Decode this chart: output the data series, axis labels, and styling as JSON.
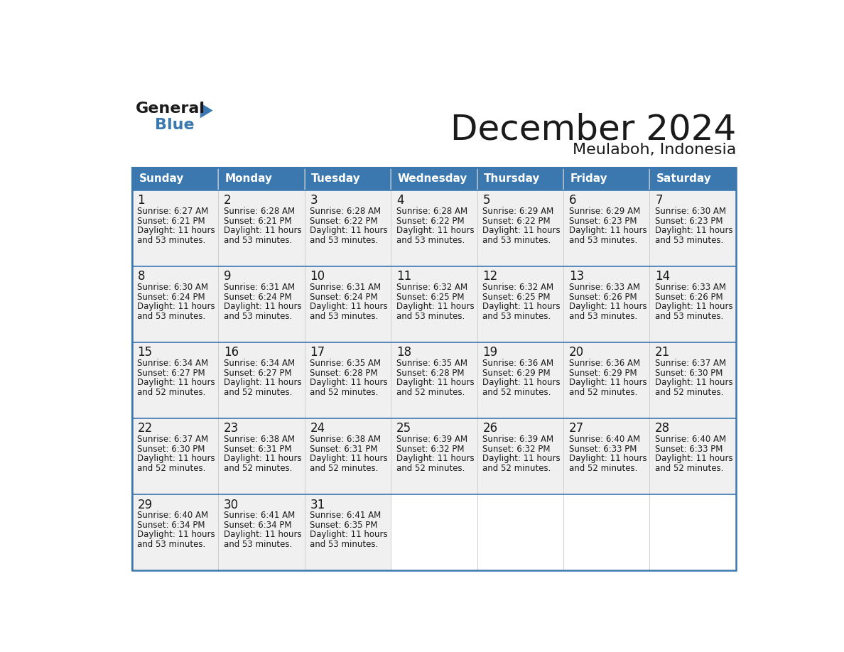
{
  "title": "December 2024",
  "subtitle": "Meulaboh, Indonesia",
  "header_color": "#3b78b0",
  "header_text_color": "#ffffff",
  "bg_color": "#ffffff",
  "cell_bg": "#f0f0f0",
  "border_color": "#3b78b0",
  "text_color": "#1a1a1a",
  "days_of_week": [
    "Sunday",
    "Monday",
    "Tuesday",
    "Wednesday",
    "Thursday",
    "Friday",
    "Saturday"
  ],
  "calendar_data": [
    [
      {
        "day": 1,
        "sunrise": "6:27 AM",
        "sunset": "6:21 PM",
        "daylight": "11 hours and 53 minutes."
      },
      {
        "day": 2,
        "sunrise": "6:28 AM",
        "sunset": "6:21 PM",
        "daylight": "11 hours and 53 minutes."
      },
      {
        "day": 3,
        "sunrise": "6:28 AM",
        "sunset": "6:22 PM",
        "daylight": "11 hours and 53 minutes."
      },
      {
        "day": 4,
        "sunrise": "6:28 AM",
        "sunset": "6:22 PM",
        "daylight": "11 hours and 53 minutes."
      },
      {
        "day": 5,
        "sunrise": "6:29 AM",
        "sunset": "6:22 PM",
        "daylight": "11 hours and 53 minutes."
      },
      {
        "day": 6,
        "sunrise": "6:29 AM",
        "sunset": "6:23 PM",
        "daylight": "11 hours and 53 minutes."
      },
      {
        "day": 7,
        "sunrise": "6:30 AM",
        "sunset": "6:23 PM",
        "daylight": "11 hours and 53 minutes."
      }
    ],
    [
      {
        "day": 8,
        "sunrise": "6:30 AM",
        "sunset": "6:24 PM",
        "daylight": "11 hours and 53 minutes."
      },
      {
        "day": 9,
        "sunrise": "6:31 AM",
        "sunset": "6:24 PM",
        "daylight": "11 hours and 53 minutes."
      },
      {
        "day": 10,
        "sunrise": "6:31 AM",
        "sunset": "6:24 PM",
        "daylight": "11 hours and 53 minutes."
      },
      {
        "day": 11,
        "sunrise": "6:32 AM",
        "sunset": "6:25 PM",
        "daylight": "11 hours and 53 minutes."
      },
      {
        "day": 12,
        "sunrise": "6:32 AM",
        "sunset": "6:25 PM",
        "daylight": "11 hours and 53 minutes."
      },
      {
        "day": 13,
        "sunrise": "6:33 AM",
        "sunset": "6:26 PM",
        "daylight": "11 hours and 53 minutes."
      },
      {
        "day": 14,
        "sunrise": "6:33 AM",
        "sunset": "6:26 PM",
        "daylight": "11 hours and 53 minutes."
      }
    ],
    [
      {
        "day": 15,
        "sunrise": "6:34 AM",
        "sunset": "6:27 PM",
        "daylight": "11 hours and 52 minutes."
      },
      {
        "day": 16,
        "sunrise": "6:34 AM",
        "sunset": "6:27 PM",
        "daylight": "11 hours and 52 minutes."
      },
      {
        "day": 17,
        "sunrise": "6:35 AM",
        "sunset": "6:28 PM",
        "daylight": "11 hours and 52 minutes."
      },
      {
        "day": 18,
        "sunrise": "6:35 AM",
        "sunset": "6:28 PM",
        "daylight": "11 hours and 52 minutes."
      },
      {
        "day": 19,
        "sunrise": "6:36 AM",
        "sunset": "6:29 PM",
        "daylight": "11 hours and 52 minutes."
      },
      {
        "day": 20,
        "sunrise": "6:36 AM",
        "sunset": "6:29 PM",
        "daylight": "11 hours and 52 minutes."
      },
      {
        "day": 21,
        "sunrise": "6:37 AM",
        "sunset": "6:30 PM",
        "daylight": "11 hours and 52 minutes."
      }
    ],
    [
      {
        "day": 22,
        "sunrise": "6:37 AM",
        "sunset": "6:30 PM",
        "daylight": "11 hours and 52 minutes."
      },
      {
        "day": 23,
        "sunrise": "6:38 AM",
        "sunset": "6:31 PM",
        "daylight": "11 hours and 52 minutes."
      },
      {
        "day": 24,
        "sunrise": "6:38 AM",
        "sunset": "6:31 PM",
        "daylight": "11 hours and 52 minutes."
      },
      {
        "day": 25,
        "sunrise": "6:39 AM",
        "sunset": "6:32 PM",
        "daylight": "11 hours and 52 minutes."
      },
      {
        "day": 26,
        "sunrise": "6:39 AM",
        "sunset": "6:32 PM",
        "daylight": "11 hours and 52 minutes."
      },
      {
        "day": 27,
        "sunrise": "6:40 AM",
        "sunset": "6:33 PM",
        "daylight": "11 hours and 52 minutes."
      },
      {
        "day": 28,
        "sunrise": "6:40 AM",
        "sunset": "6:33 PM",
        "daylight": "11 hours and 52 minutes."
      }
    ],
    [
      {
        "day": 29,
        "sunrise": "6:40 AM",
        "sunset": "6:34 PM",
        "daylight": "11 hours and 53 minutes."
      },
      {
        "day": 30,
        "sunrise": "6:41 AM",
        "sunset": "6:34 PM",
        "daylight": "11 hours and 53 minutes."
      },
      {
        "day": 31,
        "sunrise": "6:41 AM",
        "sunset": "6:35 PM",
        "daylight": "11 hours and 53 minutes."
      },
      null,
      null,
      null,
      null
    ]
  ],
  "logo_general_color": "#1a1a1a",
  "logo_blue_color": "#3b78b0",
  "title_fontsize": 36,
  "subtitle_fontsize": 16,
  "day_header_fontsize": 11,
  "day_num_fontsize": 12,
  "cell_text_fontsize": 8.5
}
